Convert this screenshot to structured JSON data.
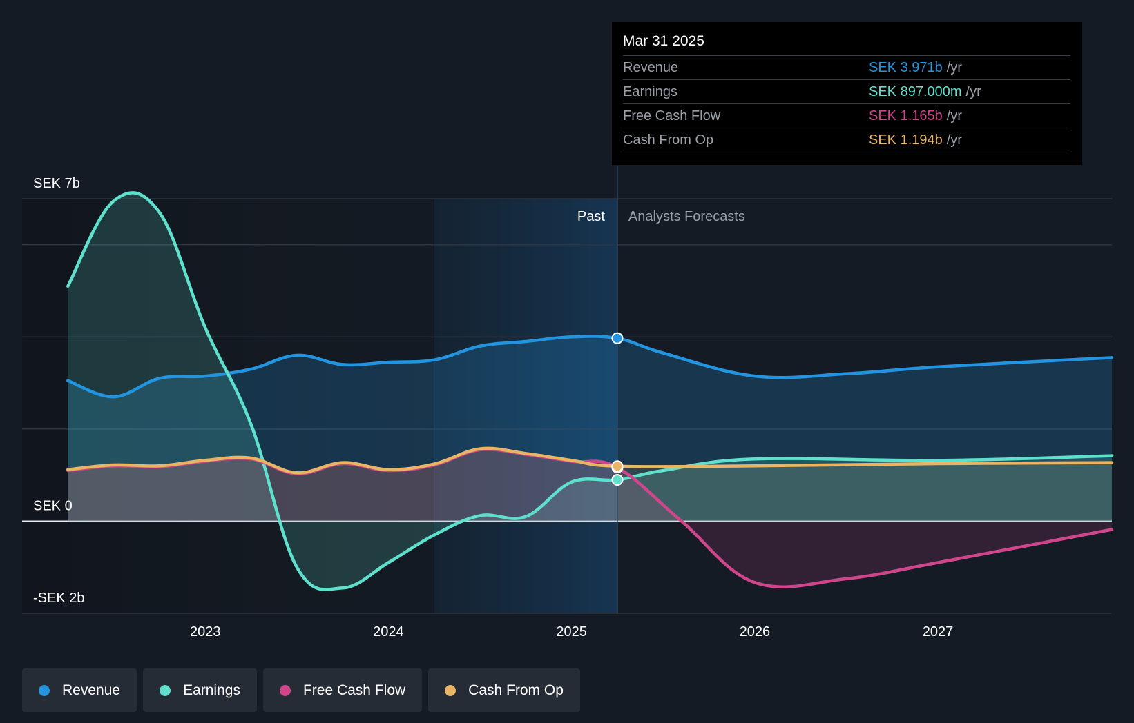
{
  "colors": {
    "background": "#151b24",
    "revenue": "#2394df",
    "earnings": "#5fe0cd",
    "fcf": "#d0468c",
    "cfo": "#e9b463",
    "past_band": "#1a3a57"
  },
  "tooltip": {
    "date": "Mar 31 2025",
    "rows": [
      {
        "name": "Revenue",
        "value": "SEK 3.971b",
        "unit": "/yr"
      },
      {
        "name": "Earnings",
        "value": "SEK 897.000m",
        "unit": "/yr"
      },
      {
        "name": "Free Cash Flow",
        "value": "SEK 1.165b",
        "unit": "/yr"
      },
      {
        "name": "Cash From Op",
        "value": "SEK 1.194b",
        "unit": "/yr"
      }
    ]
  },
  "legend": [
    {
      "name": "Revenue",
      "color": "#2394df"
    },
    {
      "name": "Earnings",
      "color": "#5fe0cd"
    },
    {
      "name": "Free Cash Flow",
      "color": "#d0468c"
    },
    {
      "name": "Cash From Op",
      "color": "#e9b463"
    }
  ],
  "chart_data": {
    "type": "line",
    "title": "",
    "y_unit": "SEK b",
    "ylim": [
      -2,
      7
    ],
    "xlim": [
      2022.0,
      2027.95
    ],
    "y_tick_labels": [
      {
        "value": 7,
        "label": "SEK 7b"
      },
      {
        "value": 0,
        "label": "SEK 0"
      },
      {
        "value": -2,
        "label": "-SEK 2b"
      }
    ],
    "y_gridlines": [
      7,
      6,
      4,
      2,
      0,
      -2
    ],
    "x_ticks": [
      {
        "value": 2023,
        "label": "2023"
      },
      {
        "value": 2024,
        "label": "2024"
      },
      {
        "value": 2025,
        "label": "2025"
      },
      {
        "value": 2026,
        "label": "2026"
      },
      {
        "value": 2027,
        "label": "2027"
      }
    ],
    "past_label": "Past",
    "forecast_label": "Analysts Forecasts",
    "divider_x": 2025.25,
    "past_band_start": 2024.25,
    "series": [
      {
        "name": "Revenue",
        "key": "revenue",
        "points": [
          [
            2022.25,
            3.05
          ],
          [
            2022.5,
            2.7
          ],
          [
            2022.75,
            3.1
          ],
          [
            2023.0,
            3.15
          ],
          [
            2023.25,
            3.3
          ],
          [
            2023.5,
            3.6
          ],
          [
            2023.75,
            3.4
          ],
          [
            2024.0,
            3.45
          ],
          [
            2024.25,
            3.5
          ],
          [
            2024.5,
            3.8
          ],
          [
            2024.75,
            3.9
          ],
          [
            2025.0,
            4.0
          ],
          [
            2025.25,
            3.971
          ],
          [
            2025.5,
            3.65
          ],
          [
            2026.0,
            3.15
          ],
          [
            2026.5,
            3.2
          ],
          [
            2027.0,
            3.35
          ],
          [
            2027.95,
            3.55
          ]
        ]
      },
      {
        "name": "Earnings",
        "key": "earnings",
        "points": [
          [
            2022.25,
            5.1
          ],
          [
            2022.5,
            6.95
          ],
          [
            2022.75,
            6.7
          ],
          [
            2023.0,
            4.2
          ],
          [
            2023.25,
            2.1
          ],
          [
            2023.5,
            -1.0
          ],
          [
            2023.75,
            -1.45
          ],
          [
            2024.0,
            -0.9
          ],
          [
            2024.25,
            -0.3
          ],
          [
            2024.5,
            0.12
          ],
          [
            2024.75,
            0.1
          ],
          [
            2025.0,
            0.85
          ],
          [
            2025.25,
            0.897
          ],
          [
            2025.5,
            1.1
          ],
          [
            2026.0,
            1.35
          ],
          [
            2027.0,
            1.32
          ],
          [
            2027.95,
            1.42
          ]
        ]
      },
      {
        "name": "Free Cash Flow",
        "key": "fcf",
        "points": [
          [
            2022.25,
            1.1
          ],
          [
            2022.5,
            1.2
          ],
          [
            2022.75,
            1.18
          ],
          [
            2023.0,
            1.3
          ],
          [
            2023.25,
            1.35
          ],
          [
            2023.5,
            1.03
          ],
          [
            2023.75,
            1.25
          ],
          [
            2024.0,
            1.1
          ],
          [
            2024.25,
            1.22
          ],
          [
            2024.5,
            1.55
          ],
          [
            2024.75,
            1.45
          ],
          [
            2025.0,
            1.3
          ],
          [
            2025.25,
            1.165
          ],
          [
            2025.6,
            0.0
          ],
          [
            2026.0,
            -1.33
          ],
          [
            2026.5,
            -1.25
          ],
          [
            2027.0,
            -0.9
          ],
          [
            2027.95,
            -0.18
          ]
        ]
      },
      {
        "name": "Cash From Op",
        "key": "cfo",
        "points": [
          [
            2022.25,
            1.12
          ],
          [
            2022.5,
            1.22
          ],
          [
            2022.75,
            1.2
          ],
          [
            2023.0,
            1.32
          ],
          [
            2023.25,
            1.37
          ],
          [
            2023.5,
            1.05
          ],
          [
            2023.75,
            1.27
          ],
          [
            2024.0,
            1.12
          ],
          [
            2024.25,
            1.24
          ],
          [
            2024.5,
            1.57
          ],
          [
            2024.75,
            1.47
          ],
          [
            2025.0,
            1.32
          ],
          [
            2025.25,
            1.194
          ],
          [
            2026.0,
            1.2
          ],
          [
            2027.0,
            1.25
          ],
          [
            2027.95,
            1.27
          ]
        ]
      }
    ],
    "markers_at": 2025.25
  }
}
